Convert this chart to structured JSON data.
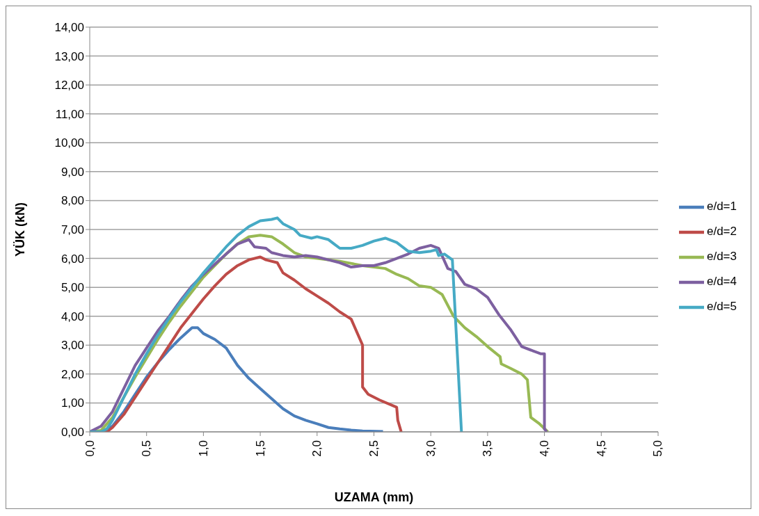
{
  "chart_data": {
    "type": "line",
    "xlabel": "UZAMA (mm)",
    "ylabel": "YÜK (kN)",
    "xlim": [
      0,
      5
    ],
    "ylim": [
      0,
      14
    ],
    "xticks": [
      {
        "value": 0,
        "label": "0,0"
      },
      {
        "value": 0.5,
        "label": "0,5"
      },
      {
        "value": 1,
        "label": "1,0"
      },
      {
        "value": 1.5,
        "label": "1,5"
      },
      {
        "value": 2,
        "label": "2,0"
      },
      {
        "value": 2.5,
        "label": "2,5"
      },
      {
        "value": 3,
        "label": "3,0"
      },
      {
        "value": 3.5,
        "label": "3,5"
      },
      {
        "value": 4,
        "label": "4,0"
      },
      {
        "value": 4.5,
        "label": "4,5"
      },
      {
        "value": 5,
        "label": "5,0"
      }
    ],
    "yticks": [
      {
        "value": 0,
        "label": "0,00"
      },
      {
        "value": 1,
        "label": "1,00"
      },
      {
        "value": 2,
        "label": "2,00"
      },
      {
        "value": 3,
        "label": "3,00"
      },
      {
        "value": 4,
        "label": "4,00"
      },
      {
        "value": 5,
        "label": "5,00"
      },
      {
        "value": 6,
        "label": "6,00"
      },
      {
        "value": 7,
        "label": "7,00"
      },
      {
        "value": 8,
        "label": "8,00"
      },
      {
        "value": 9,
        "label": "9,00"
      },
      {
        "value": 10,
        "label": "10,00"
      },
      {
        "value": 11,
        "label": "11,00"
      },
      {
        "value": 12,
        "label": "12,00"
      },
      {
        "value": 13,
        "label": "13,00"
      },
      {
        "value": 14,
        "label": "14,00"
      }
    ],
    "grid": "y",
    "legend": "right",
    "marker": "none",
    "line_style": "solid",
    "series": [
      {
        "name": "e/d=1",
        "color": "#4a7ebb",
        "x": [
          0,
          0.1,
          0.2,
          0.3,
          0.4,
          0.5,
          0.6,
          0.7,
          0.8,
          0.9,
          0.95,
          1.0,
          1.1,
          1.2,
          1.3,
          1.4,
          1.5,
          1.6,
          1.7,
          1.8,
          1.9,
          2.0,
          2.1,
          2.2,
          2.3,
          2.4,
          2.58
        ],
        "values": [
          0,
          0,
          0.2,
          0.7,
          1.3,
          1.9,
          2.4,
          2.85,
          3.25,
          3.6,
          3.6,
          3.4,
          3.2,
          2.9,
          2.3,
          1.85,
          1.5,
          1.15,
          0.8,
          0.55,
          0.4,
          0.28,
          0.15,
          0.1,
          0.06,
          0.03,
          0.01
        ]
      },
      {
        "name": "e/d=2",
        "color": "#be4b48",
        "x": [
          0,
          0.15,
          0.2,
          0.3,
          0.4,
          0.5,
          0.6,
          0.7,
          0.8,
          0.9,
          1.0,
          1.1,
          1.2,
          1.3,
          1.4,
          1.5,
          1.55,
          1.65,
          1.7,
          1.8,
          1.9,
          2.0,
          2.1,
          2.2,
          2.3,
          2.4,
          2.4,
          2.45,
          2.55,
          2.7,
          2.71,
          2.74
        ],
        "values": [
          0,
          0,
          0.15,
          0.6,
          1.2,
          1.8,
          2.4,
          3.0,
          3.6,
          4.1,
          4.6,
          5.05,
          5.45,
          5.75,
          5.95,
          6.05,
          5.95,
          5.85,
          5.5,
          5.25,
          4.95,
          4.7,
          4.45,
          4.15,
          3.9,
          3.0,
          1.55,
          1.3,
          1.1,
          0.85,
          0.4,
          0
        ]
      },
      {
        "name": "e/d=3",
        "color": "#98b954",
        "x": [
          0,
          0.1,
          0.2,
          0.3,
          0.4,
          0.5,
          0.6,
          0.7,
          0.8,
          0.9,
          1.0,
          1.1,
          1.2,
          1.3,
          1.4,
          1.5,
          1.6,
          1.7,
          1.8,
          1.9,
          2.0,
          2.2,
          2.4,
          2.6,
          2.7,
          2.8,
          2.9,
          3.0,
          3.1,
          3.2,
          3.3,
          3.4,
          3.5,
          3.61,
          3.62,
          3.7,
          3.8,
          3.85,
          3.88,
          3.95,
          4.03
        ],
        "values": [
          0,
          0.05,
          0.5,
          1.2,
          1.9,
          2.55,
          3.2,
          3.8,
          4.35,
          4.85,
          5.35,
          5.75,
          6.15,
          6.5,
          6.75,
          6.8,
          6.75,
          6.5,
          6.2,
          6.05,
          6.0,
          5.9,
          5.75,
          5.65,
          5.45,
          5.3,
          5.05,
          5.0,
          4.75,
          4.0,
          3.6,
          3.3,
          2.95,
          2.6,
          2.35,
          2.2,
          2.0,
          1.8,
          0.5,
          0.3,
          0
        ]
      },
      {
        "name": "e/d=4",
        "color": "#7d60a0",
        "x": [
          0,
          0.1,
          0.2,
          0.3,
          0.4,
          0.5,
          0.6,
          0.7,
          0.8,
          0.9,
          1.0,
          1.1,
          1.2,
          1.3,
          1.4,
          1.45,
          1.55,
          1.6,
          1.7,
          1.8,
          1.9,
          2.0,
          2.1,
          2.2,
          2.3,
          2.4,
          2.5,
          2.6,
          2.7,
          2.8,
          2.9,
          3.0,
          3.07,
          3.15,
          3.22,
          3.3,
          3.4,
          3.5,
          3.6,
          3.7,
          3.8,
          3.9,
          3.97,
          4.0,
          4.0,
          4.02
        ],
        "values": [
          0,
          0.2,
          0.7,
          1.5,
          2.3,
          2.9,
          3.5,
          4.0,
          4.55,
          5.05,
          5.45,
          5.8,
          6.15,
          6.5,
          6.65,
          6.4,
          6.35,
          6.2,
          6.1,
          6.05,
          6.1,
          6.05,
          5.95,
          5.85,
          5.7,
          5.75,
          5.75,
          5.85,
          6.0,
          6.15,
          6.35,
          6.45,
          6.35,
          5.65,
          5.55,
          5.1,
          4.95,
          4.65,
          4.05,
          3.55,
          2.95,
          2.8,
          2.7,
          2.7,
          0.1,
          0
        ]
      },
      {
        "name": "e/d=5",
        "color": "#46aac5",
        "x": [
          0,
          0.1,
          0.15,
          0.2,
          0.3,
          0.4,
          0.5,
          0.6,
          0.7,
          0.8,
          0.9,
          1.0,
          1.1,
          1.2,
          1.3,
          1.4,
          1.5,
          1.6,
          1.65,
          1.7,
          1.8,
          1.85,
          1.95,
          2.0,
          2.1,
          2.15,
          2.2,
          2.3,
          2.4,
          2.5,
          2.6,
          2.7,
          2.8,
          2.9,
          3.0,
          3.05,
          3.07,
          3.12,
          3.19,
          3.27
        ],
        "values": [
          0,
          0,
          0.1,
          0.4,
          1.2,
          2.0,
          2.7,
          3.35,
          3.95,
          4.5,
          5.0,
          5.5,
          5.95,
          6.4,
          6.8,
          7.1,
          7.3,
          7.35,
          7.4,
          7.2,
          7.0,
          6.8,
          6.7,
          6.75,
          6.65,
          6.5,
          6.35,
          6.35,
          6.45,
          6.6,
          6.7,
          6.55,
          6.25,
          6.2,
          6.25,
          6.3,
          6.1,
          6.15,
          5.95,
          0
        ]
      }
    ]
  }
}
